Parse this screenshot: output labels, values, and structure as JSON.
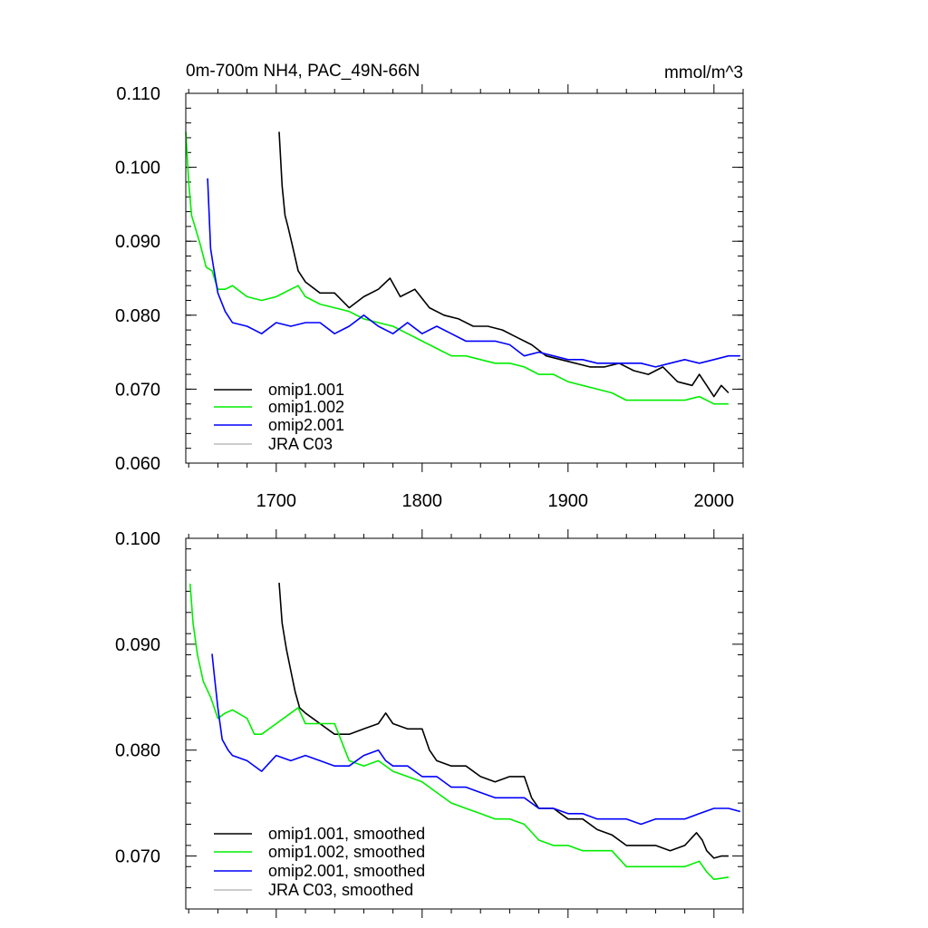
{
  "chart_data": [
    {
      "type": "line",
      "title": "0m-700m NH4, PAC_49N-66N",
      "units": "mmol/m^3",
      "xlabel": "",
      "ylabel": "",
      "xlim": [
        1638,
        2020
      ],
      "ylim": [
        0.06,
        0.11
      ],
      "x_ticks": [
        1700,
        1800,
        1900,
        2000
      ],
      "x_tick_labels": [
        "1700",
        "1800",
        "1900",
        "2000"
      ],
      "y_ticks": [
        0.06,
        0.07,
        0.08,
        0.09,
        0.1,
        0.11
      ],
      "y_tick_labels": [
        "0.060",
        "0.070",
        "0.080",
        "0.090",
        "0.100",
        "0.110"
      ],
      "legend_position": "bottom-left",
      "series": [
        {
          "name": "omip1.001",
          "color": "#000000",
          "x": [
            1702,
            1704,
            1706,
            1708,
            1711,
            1715,
            1720,
            1730,
            1740,
            1750,
            1760,
            1770,
            1778,
            1785,
            1795,
            1805,
            1815,
            1825,
            1835,
            1845,
            1855,
            1865,
            1875,
            1885,
            1895,
            1905,
            1915,
            1925,
            1935,
            1945,
            1955,
            1965,
            1975,
            1985,
            1990,
            1995,
            2000,
            2005,
            2010
          ],
          "values": [
            0.1048,
            0.0975,
            0.0935,
            0.092,
            0.0895,
            0.086,
            0.0845,
            0.083,
            0.083,
            0.081,
            0.0825,
            0.0835,
            0.085,
            0.0825,
            0.0835,
            0.081,
            0.08,
            0.0795,
            0.0785,
            0.0785,
            0.078,
            0.077,
            0.076,
            0.0745,
            0.074,
            0.0735,
            0.073,
            0.073,
            0.0735,
            0.0725,
            0.072,
            0.073,
            0.071,
            0.0705,
            0.072,
            0.0705,
            0.069,
            0.0705,
            0.0695
          ]
        },
        {
          "name": "omip1.002",
          "color": "#00ee00",
          "x": [
            1638,
            1640,
            1642,
            1645,
            1648,
            1652,
            1656,
            1660,
            1665,
            1670,
            1680,
            1690,
            1700,
            1710,
            1715,
            1720,
            1730,
            1740,
            1750,
            1760,
            1770,
            1780,
            1790,
            1800,
            1810,
            1820,
            1830,
            1840,
            1850,
            1860,
            1870,
            1880,
            1890,
            1900,
            1910,
            1920,
            1930,
            1940,
            1950,
            1960,
            1970,
            1980,
            1990,
            2000,
            2010
          ],
          "values": [
            0.1048,
            0.098,
            0.0935,
            0.0915,
            0.0895,
            0.0865,
            0.086,
            0.0835,
            0.0835,
            0.084,
            0.0825,
            0.082,
            0.0825,
            0.0835,
            0.084,
            0.0825,
            0.0815,
            0.081,
            0.0805,
            0.0795,
            0.079,
            0.0785,
            0.0775,
            0.0765,
            0.0755,
            0.0745,
            0.0745,
            0.074,
            0.0735,
            0.0735,
            0.073,
            0.072,
            0.072,
            0.071,
            0.0705,
            0.07,
            0.0695,
            0.0685,
            0.0685,
            0.0685,
            0.0685,
            0.0685,
            0.069,
            0.068,
            0.068
          ]
        },
        {
          "name": "omip2.001",
          "color": "#0000ff",
          "x": [
            1653,
            1655,
            1657,
            1660,
            1665,
            1670,
            1680,
            1690,
            1700,
            1710,
            1720,
            1730,
            1740,
            1750,
            1760,
            1770,
            1780,
            1790,
            1800,
            1810,
            1820,
            1830,
            1840,
            1850,
            1860,
            1870,
            1880,
            1890,
            1900,
            1910,
            1920,
            1930,
            1940,
            1950,
            1960,
            1970,
            1980,
            1990,
            2000,
            2010,
            2018
          ],
          "values": [
            0.0985,
            0.089,
            0.0865,
            0.083,
            0.0805,
            0.079,
            0.0785,
            0.0775,
            0.079,
            0.0785,
            0.079,
            0.079,
            0.0775,
            0.0785,
            0.08,
            0.0785,
            0.0775,
            0.079,
            0.0775,
            0.0785,
            0.0775,
            0.0765,
            0.0765,
            0.0765,
            0.076,
            0.0745,
            0.075,
            0.0745,
            0.074,
            0.074,
            0.0735,
            0.0735,
            0.0735,
            0.0735,
            0.073,
            0.0735,
            0.074,
            0.0735,
            0.074,
            0.0745,
            0.0745
          ]
        },
        {
          "name": "JRA C03",
          "color": "#bbbbbb",
          "x": [],
          "values": []
        }
      ]
    },
    {
      "type": "line",
      "title": "",
      "xlabel": "",
      "ylabel": "",
      "xlim": [
        1638,
        2020
      ],
      "ylim": [
        0.065,
        0.1
      ],
      "x_ticks": [
        1700,
        1800,
        1900,
        2000
      ],
      "y_ticks": [
        0.07,
        0.08,
        0.09,
        0.1
      ],
      "y_tick_labels": [
        "0.070",
        "0.080",
        "0.090",
        "0.100"
      ],
      "legend_position": "bottom-left",
      "series": [
        {
          "name": "omip1.001, smoothed",
          "color": "#000000",
          "x": [
            1702,
            1704,
            1707,
            1710,
            1713,
            1716,
            1720,
            1725,
            1730,
            1740,
            1750,
            1760,
            1770,
            1775,
            1780,
            1790,
            1800,
            1805,
            1810,
            1820,
            1830,
            1840,
            1850,
            1860,
            1870,
            1875,
            1880,
            1890,
            1900,
            1910,
            1920,
            1930,
            1940,
            1950,
            1960,
            1970,
            1980,
            1988,
            1992,
            1995,
            2000,
            2005,
            2010
          ],
          "values": [
            0.0958,
            0.092,
            0.0895,
            0.0875,
            0.0855,
            0.084,
            0.0835,
            0.083,
            0.0825,
            0.0815,
            0.0815,
            0.082,
            0.0825,
            0.0835,
            0.0825,
            0.082,
            0.082,
            0.08,
            0.079,
            0.0785,
            0.0785,
            0.0775,
            0.077,
            0.0775,
            0.0775,
            0.0755,
            0.0745,
            0.0745,
            0.0735,
            0.0735,
            0.0725,
            0.072,
            0.071,
            0.071,
            0.071,
            0.0705,
            0.071,
            0.0722,
            0.0715,
            0.0705,
            0.0698,
            0.07,
            0.07
          ]
        },
        {
          "name": "omip1.002, smoothed",
          "color": "#00ee00",
          "x": [
            1641,
            1643,
            1646,
            1650,
            1655,
            1660,
            1665,
            1670,
            1680,
            1685,
            1690,
            1700,
            1710,
            1715,
            1720,
            1730,
            1740,
            1750,
            1760,
            1770,
            1780,
            1790,
            1800,
            1810,
            1820,
            1830,
            1840,
            1850,
            1860,
            1870,
            1880,
            1890,
            1900,
            1910,
            1920,
            1930,
            1940,
            1950,
            1960,
            1970,
            1980,
            1990,
            1995,
            2000,
            2010
          ],
          "values": [
            0.0957,
            0.092,
            0.089,
            0.0865,
            0.085,
            0.083,
            0.0835,
            0.0838,
            0.083,
            0.0815,
            0.0815,
            0.0825,
            0.0835,
            0.084,
            0.0825,
            0.0825,
            0.0825,
            0.079,
            0.0785,
            0.079,
            0.078,
            0.0775,
            0.077,
            0.076,
            0.075,
            0.0745,
            0.074,
            0.0735,
            0.0735,
            0.073,
            0.0715,
            0.071,
            0.071,
            0.0705,
            0.0705,
            0.0705,
            0.069,
            0.069,
            0.069,
            0.069,
            0.069,
            0.0695,
            0.0685,
            0.0678,
            0.068
          ]
        },
        {
          "name": "omip2.001, smoothed",
          "color": "#0000ff",
          "x": [
            1656,
            1658,
            1660,
            1663,
            1667,
            1670,
            1680,
            1690,
            1700,
            1710,
            1720,
            1730,
            1740,
            1750,
            1760,
            1770,
            1775,
            1780,
            1790,
            1800,
            1810,
            1820,
            1830,
            1840,
            1850,
            1860,
            1870,
            1880,
            1890,
            1900,
            1910,
            1920,
            1930,
            1940,
            1950,
            1960,
            1970,
            1980,
            1990,
            2000,
            2010,
            2018
          ],
          "values": [
            0.0891,
            0.0865,
            0.084,
            0.081,
            0.08,
            0.0795,
            0.079,
            0.078,
            0.0795,
            0.079,
            0.0795,
            0.079,
            0.0785,
            0.0785,
            0.0795,
            0.08,
            0.079,
            0.0785,
            0.0785,
            0.0775,
            0.0775,
            0.0765,
            0.0765,
            0.076,
            0.0755,
            0.0755,
            0.0755,
            0.0745,
            0.0745,
            0.074,
            0.074,
            0.0735,
            0.0735,
            0.0735,
            0.073,
            0.0735,
            0.0735,
            0.0735,
            0.074,
            0.0745,
            0.0745,
            0.0742
          ]
        },
        {
          "name": "JRA C03, smoothed",
          "color": "#bbbbbb",
          "x": [],
          "values": []
        }
      ]
    }
  ]
}
